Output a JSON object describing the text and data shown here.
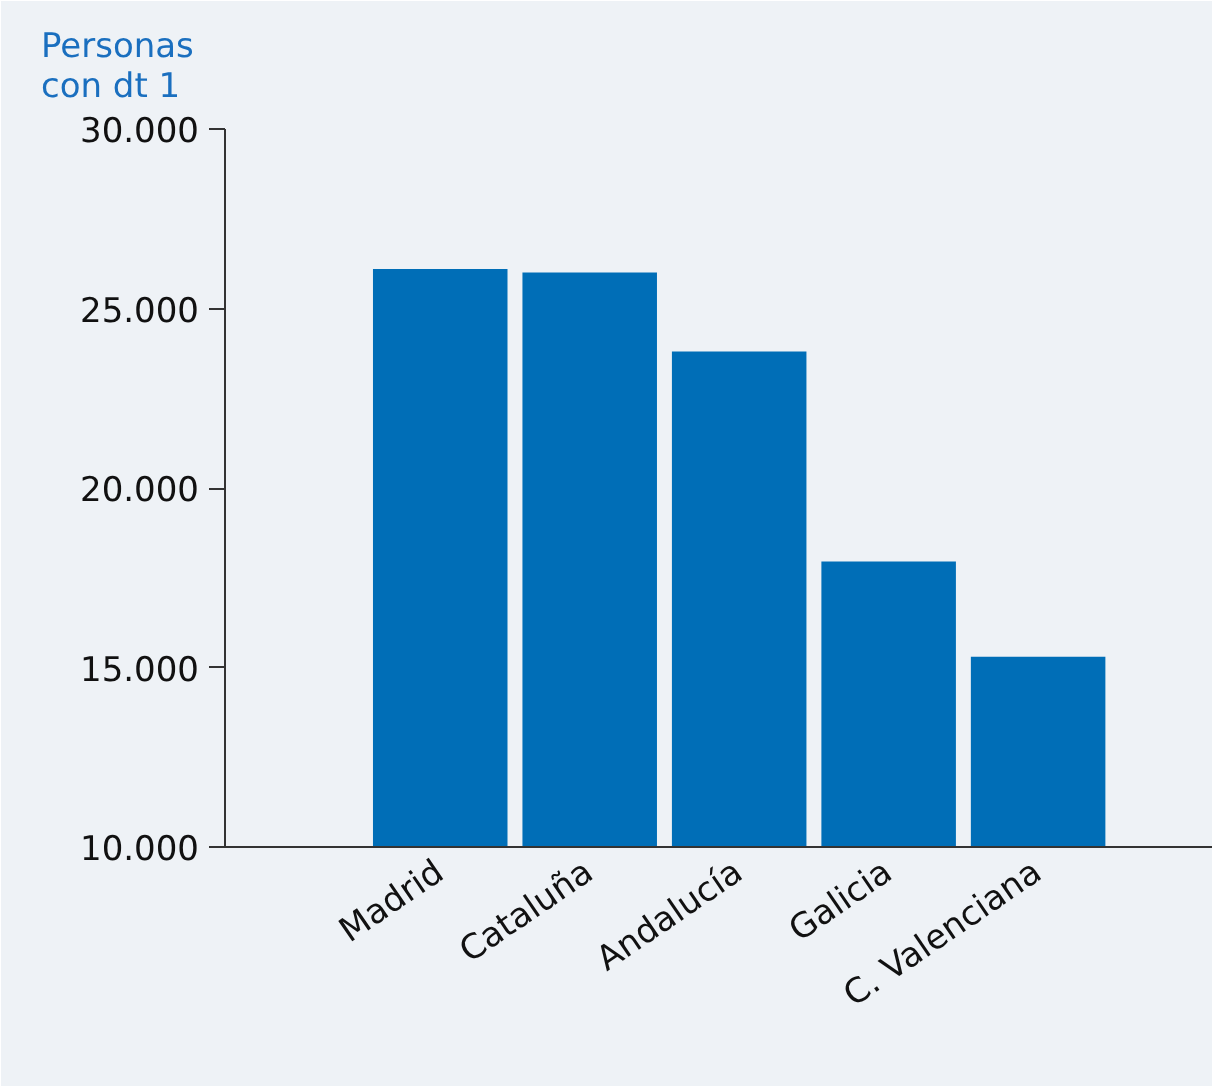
{
  "chart_data": {
    "type": "bar",
    "ylabel": "Personas con dt 1",
    "categories": [
      "Madrid",
      "Cataluña",
      "Andalucía",
      "Galicia",
      "C. Valenciana"
    ],
    "values": [
      26100,
      26000,
      23800,
      17950,
      15300
    ],
    "color": "#006eb7",
    "ylim": [
      10000,
      30000
    ],
    "yticks": [
      {
        "value": 10000,
        "label": "10.000"
      },
      {
        "value": 15000,
        "label": "15.000"
      },
      {
        "value": 20000,
        "label": "20.000"
      },
      {
        "value": 25000,
        "label": "25.000"
      },
      {
        "value": 30000,
        "label": "30.000"
      }
    ],
    "grid": false
  }
}
